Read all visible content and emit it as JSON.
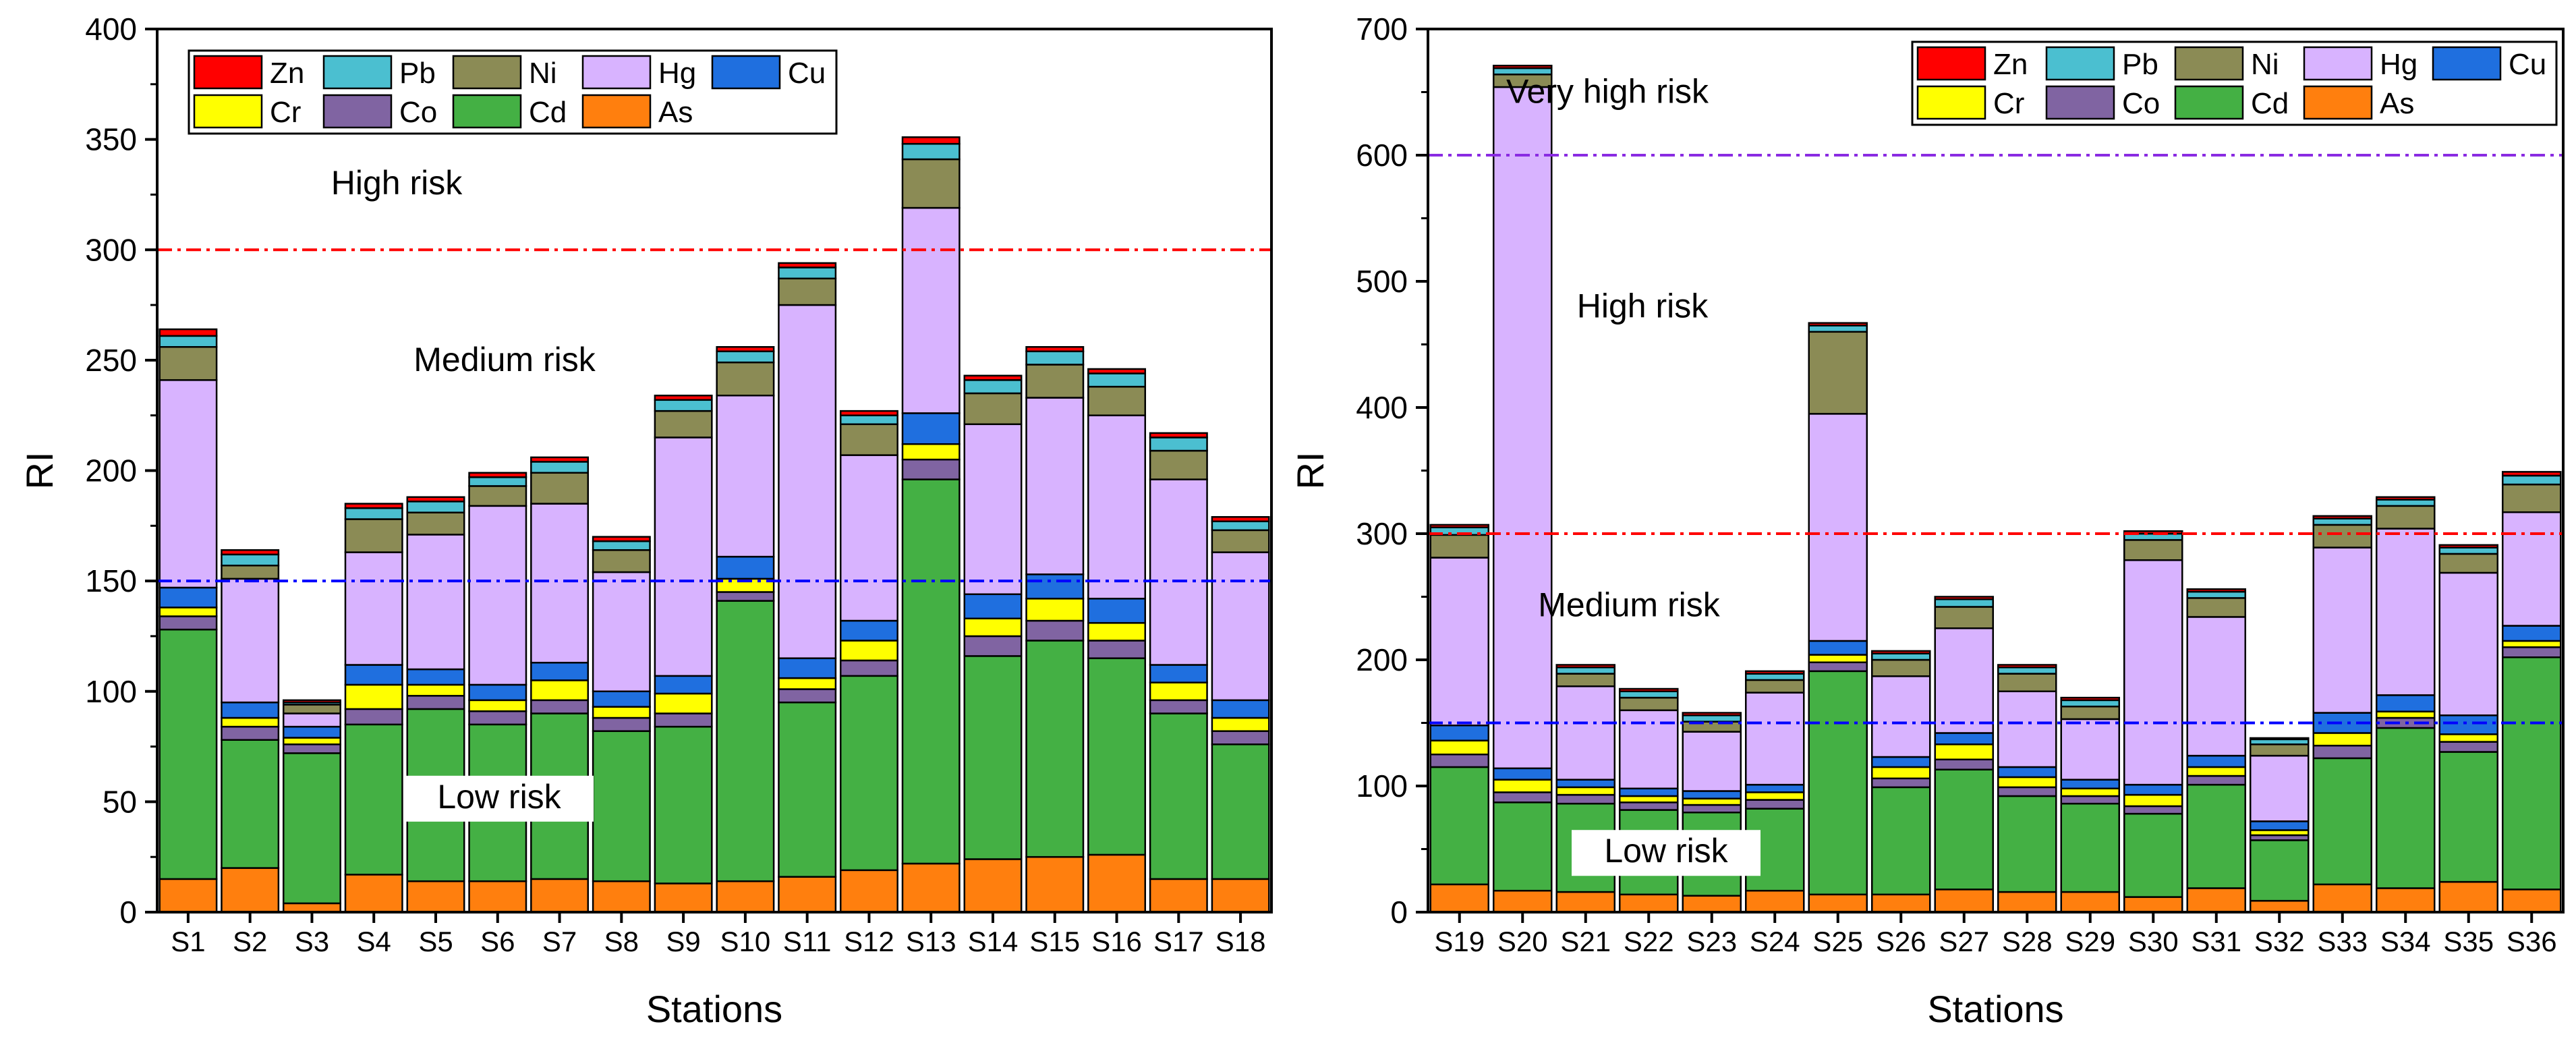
{
  "chart_data": [
    {
      "type": "bar",
      "stacked": true,
      "xlabel": "Stations",
      "ylabel": "RI",
      "ylim": [
        0,
        400
      ],
      "yticks": [
        0,
        50,
        100,
        150,
        200,
        250,
        300,
        350,
        400
      ],
      "categories": [
        "S1",
        "S2",
        "S3",
        "S4",
        "S5",
        "S6",
        "S7",
        "S8",
        "S9",
        "S10",
        "S11",
        "S12",
        "S13",
        "S14",
        "S15",
        "S16",
        "S17",
        "S18"
      ],
      "legend_position": "top-left",
      "legend_order": [
        "Zn",
        "Pb",
        "Ni",
        "Hg",
        "Cu",
        "Cr",
        "Co",
        "Cd",
        "As"
      ],
      "series": [
        {
          "name": "As",
          "color": "#ff7f0e",
          "values": [
            15,
            20,
            4,
            17,
            14,
            14,
            15,
            14,
            13,
            14,
            16,
            19,
            22,
            24,
            25,
            26,
            15,
            15
          ]
        },
        {
          "name": "Cd",
          "color": "#44b044",
          "values": [
            113,
            58,
            68,
            68,
            78,
            71,
            75,
            68,
            71,
            127,
            79,
            88,
            174,
            92,
            98,
            89,
            75,
            61
          ]
        },
        {
          "name": "Co",
          "color": "#8064a2",
          "values": [
            6,
            6,
            4,
            7,
            6,
            6,
            6,
            6,
            6,
            4,
            6,
            7,
            9,
            9,
            9,
            8,
            6,
            6
          ]
        },
        {
          "name": "Cr",
          "color": "#ffff00",
          "values": [
            4,
            4,
            3,
            11,
            5,
            5,
            9,
            5,
            9,
            6,
            5,
            9,
            7,
            8,
            10,
            8,
            8,
            6
          ]
        },
        {
          "name": "Cu",
          "color": "#1f6fdf",
          "values": [
            9,
            7,
            5,
            9,
            7,
            7,
            8,
            7,
            8,
            10,
            9,
            9,
            14,
            11,
            11,
            11,
            8,
            8
          ]
        },
        {
          "name": "Hg",
          "color": "#d8b3ff",
          "values": [
            94,
            56,
            6,
            51,
            61,
            81,
            72,
            54,
            108,
            73,
            160,
            75,
            93,
            77,
            80,
            83,
            84,
            67
          ]
        },
        {
          "name": "Ni",
          "color": "#8b8b55",
          "values": [
            15,
            6,
            4,
            15,
            10,
            9,
            14,
            10,
            12,
            15,
            12,
            14,
            22,
            14,
            15,
            13,
            13,
            10
          ]
        },
        {
          "name": "Pb",
          "color": "#4bbfd0",
          "values": [
            5,
            5,
            1,
            5,
            5,
            4,
            5,
            4,
            5,
            5,
            5,
            4,
            7,
            6,
            6,
            6,
            6,
            4
          ]
        },
        {
          "name": "Zn",
          "color": "#ff0000",
          "values": [
            3,
            2,
            1,
            2,
            2,
            2,
            2,
            2,
            2,
            2,
            2,
            2,
            3,
            2,
            2,
            2,
            2,
            2
          ]
        }
      ],
      "reference_lines": [
        {
          "value": 300,
          "color": "#ff0000",
          "style": "dash-dot"
        },
        {
          "value": 150,
          "color": "#0000ff",
          "style": "dash-dot"
        }
      ],
      "annotations": [
        {
          "text": "High risk",
          "x_after": "S6",
          "y": 330
        },
        {
          "text": "Medium risk",
          "x_after": "S6",
          "y": 250
        },
        {
          "text": "Low risk",
          "x_after": "S6",
          "y": 52
        }
      ]
    },
    {
      "type": "bar",
      "stacked": true,
      "xlabel": "Stations",
      "ylabel": "RI",
      "ylim": [
        0,
        700
      ],
      "yticks": [
        0,
        100,
        200,
        300,
        400,
        500,
        600,
        700
      ],
      "categories": [
        "S19",
        "S20",
        "S21",
        "S22",
        "S23",
        "S24",
        "S25",
        "S26",
        "S27",
        "S28",
        "S29",
        "S30",
        "S31",
        "S32",
        "S33",
        "S34",
        "S35",
        "S36"
      ],
      "legend_position": "top-right",
      "legend_order": [
        "Zn",
        "Pb",
        "Ni",
        "Hg",
        "Cu",
        "Cr",
        "Co",
        "Cd",
        "As"
      ],
      "series": [
        {
          "name": "As",
          "color": "#ff7f0e",
          "values": [
            22,
            17,
            16,
            14,
            13,
            17,
            14,
            14,
            18,
            16,
            16,
            12,
            19,
            9,
            22,
            19,
            24,
            18
          ]
        },
        {
          "name": "Cd",
          "color": "#44b044",
          "values": [
            93,
            70,
            70,
            67,
            66,
            65,
            177,
            85,
            95,
            76,
            70,
            66,
            82,
            48,
            100,
            127,
            103,
            184
          ]
        },
        {
          "name": "Co",
          "color": "#8064a2",
          "values": [
            10,
            8,
            7,
            6,
            6,
            7,
            7,
            7,
            8,
            7,
            6,
            6,
            7,
            4,
            10,
            8,
            8,
            8
          ]
        },
        {
          "name": "Cr",
          "color": "#ffff00",
          "values": [
            11,
            10,
            6,
            5,
            5,
            6,
            6,
            9,
            12,
            8,
            6,
            9,
            7,
            4,
            10,
            5,
            6,
            5
          ]
        },
        {
          "name": "Cu",
          "color": "#1f6fdf",
          "values": [
            12,
            9,
            6,
            6,
            6,
            6,
            11,
            8,
            9,
            8,
            7,
            8,
            9,
            7,
            16,
            13,
            15,
            12
          ]
        },
        {
          "name": "Hg",
          "color": "#d8b3ff",
          "values": [
            133,
            540,
            74,
            62,
            47,
            73,
            180,
            64,
            83,
            60,
            48,
            178,
            110,
            52,
            131,
            132,
            113,
            90
          ]
        },
        {
          "name": "Ni",
          "color": "#8b8b55",
          "values": [
            18,
            10,
            10,
            10,
            8,
            10,
            65,
            13,
            17,
            14,
            10,
            16,
            15,
            9,
            18,
            18,
            15,
            22
          ]
        },
        {
          "name": "Pb",
          "color": "#4bbfd0",
          "values": [
            6,
            5,
            5,
            5,
            5,
            5,
            5,
            5,
            6,
            5,
            5,
            5,
            5,
            4,
            5,
            5,
            5,
            7
          ]
        },
        {
          "name": "Zn",
          "color": "#ff0000",
          "values": [
            2,
            2,
            2,
            2,
            2,
            2,
            2,
            2,
            2,
            2,
            2,
            2,
            2,
            1,
            2,
            2,
            2,
            3
          ]
        }
      ],
      "reference_lines": [
        {
          "value": 600,
          "color": "#8a2be2",
          "style": "dash-dot"
        },
        {
          "value": 300,
          "color": "#ff0000",
          "style": "dash-dot"
        },
        {
          "value": 150,
          "color": "#0000ff",
          "style": "dash-dot"
        }
      ],
      "annotations": [
        {
          "text": "Very high risk",
          "x_after": "S21",
          "y": 650
        },
        {
          "text": "High risk",
          "x_after": "S21",
          "y": 480
        },
        {
          "text": "Medium risk",
          "x_after": "S21",
          "y": 243
        },
        {
          "text": "Low risk",
          "x_after": "S22",
          "y": 48
        }
      ]
    }
  ]
}
